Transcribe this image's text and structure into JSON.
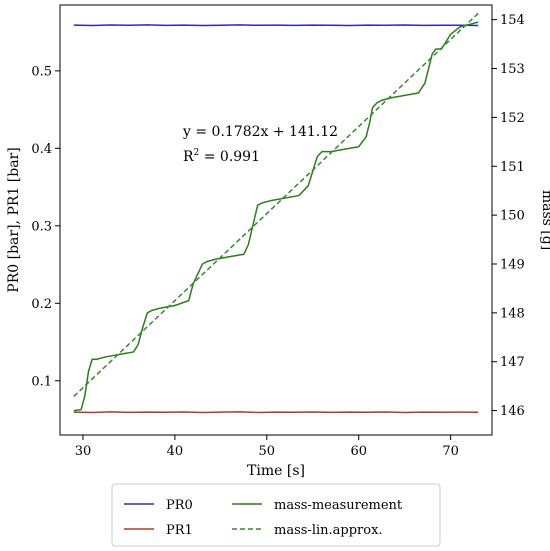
{
  "chart_data": {
    "type": "line",
    "xlabel": "Time [s]",
    "ylabel_left": "PR0 [bar], PR1 [bar]",
    "ylabel_right": "mass [g]",
    "xlim": [
      27.5,
      74.5
    ],
    "ylim_left": [
      0.03,
      0.585
    ],
    "ylim_right": [
      145.5,
      154.3
    ],
    "xticks": [
      30,
      40,
      50,
      60,
      70
    ],
    "yticks_left": [
      0.1,
      0.2,
      0.3,
      0.4,
      0.5
    ],
    "yticks_right": [
      146,
      147,
      148,
      149,
      150,
      151,
      152,
      153,
      154
    ],
    "grid": false,
    "legend_position": "bottom-outside",
    "annotation": {
      "equation": "y = 0.1782x + 141.12",
      "r2_prefix": "R",
      "r2_sup": "2",
      "r2_suffix": " = 0.991",
      "x": 35,
      "y": 152.2
    },
    "series": [
      {
        "name": "PR0",
        "axis": "left",
        "color": "#2b2bbd",
        "dash": "solid",
        "x": [
          29,
          31,
          33,
          35,
          37,
          39,
          41,
          43,
          45,
          47,
          49,
          51,
          53,
          55,
          57,
          59,
          61,
          63,
          65,
          67,
          69,
          71,
          73
        ],
        "y": [
          0.559,
          0.5585,
          0.5592,
          0.5588,
          0.5594,
          0.5587,
          0.5591,
          0.5586,
          0.5589,
          0.5593,
          0.5588,
          0.559,
          0.5587,
          0.5591,
          0.5589,
          0.5586,
          0.559,
          0.5588,
          0.5592,
          0.5587,
          0.5589,
          0.5588,
          0.5586
        ]
      },
      {
        "name": "PR1",
        "axis": "left",
        "color": "#b03a2e",
        "dash": "solid",
        "x": [
          29,
          31,
          33,
          35,
          37,
          39,
          41,
          43,
          45,
          47,
          49,
          51,
          53,
          55,
          57,
          59,
          61,
          63,
          65,
          67,
          69,
          71,
          73
        ],
        "y": [
          0.0595,
          0.059,
          0.0598,
          0.0592,
          0.0596,
          0.0593,
          0.0597,
          0.059,
          0.0595,
          0.0598,
          0.0591,
          0.0596,
          0.0594,
          0.0597,
          0.0592,
          0.0596,
          0.0593,
          0.0597,
          0.0591,
          0.0595,
          0.0593,
          0.0596,
          0.0594
        ]
      },
      {
        "name": "mass-measurement",
        "axis": "right",
        "color": "#2e7d1a",
        "dash": "solid",
        "x": [
          29,
          29.8,
          30.2,
          30.6,
          31,
          31.5,
          32.5,
          34,
          35.5,
          36,
          36.5,
          37,
          37.5,
          38.5,
          40,
          41.5,
          42,
          42.5,
          43,
          43.5,
          44.5,
          46,
          47.5,
          48,
          48.5,
          49,
          49.5,
          50.5,
          52,
          53.5,
          54.5,
          55,
          55.5,
          56,
          57,
          58.5,
          60,
          60.8,
          61.2,
          61.5,
          62,
          62.5,
          63.5,
          65,
          66.5,
          67.2,
          67.6,
          68,
          68.4,
          69,
          70,
          71,
          72,
          73
        ],
        "y": [
          146,
          146.02,
          146.3,
          146.8,
          147.05,
          147.05,
          147.1,
          147.15,
          147.2,
          147.35,
          147.7,
          148.0,
          148.05,
          148.1,
          148.15,
          148.25,
          148.6,
          148.8,
          149.0,
          149.05,
          149.1,
          149.15,
          149.2,
          149.4,
          149.8,
          150.2,
          150.25,
          150.3,
          150.35,
          150.4,
          150.6,
          150.9,
          151.2,
          151.3,
          151.3,
          151.35,
          151.4,
          151.6,
          151.9,
          152.2,
          152.3,
          152.35,
          152.4,
          152.45,
          152.5,
          152.7,
          153.0,
          153.3,
          153.4,
          153.4,
          153.7,
          153.85,
          153.9,
          153.95
        ]
      },
      {
        "name": "mass-lin.approx.",
        "axis": "right",
        "color": "#2e8b2e",
        "dash": "dashed",
        "x": [
          29,
          73
        ],
        "y": [
          146.29,
          154.13
        ]
      }
    ]
  }
}
